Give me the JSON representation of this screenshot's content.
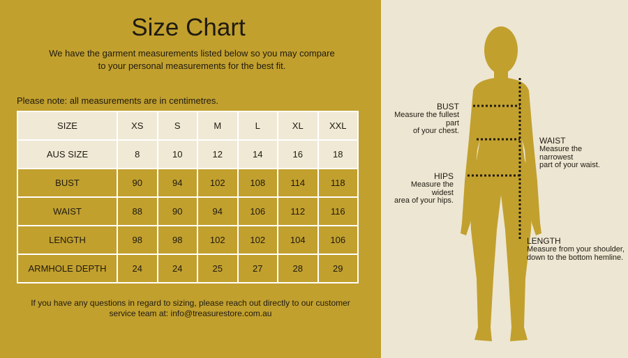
{
  "title": "Size Chart",
  "intro": [
    "We have the garment measurements listed below so you may compare",
    "to your personal measurements for the best fit."
  ],
  "note": "Please note: all measurements are in centimetres.",
  "table": {
    "rows": [
      [
        "SIZE",
        "XS",
        "S",
        "M",
        "L",
        "XL",
        "XXL"
      ],
      [
        "AUS SIZE",
        8,
        10,
        12,
        14,
        16,
        18
      ],
      [
        "BUST",
        90,
        94,
        102,
        108,
        114,
        118
      ],
      [
        "WAIST",
        88,
        90,
        94,
        106,
        112,
        116
      ],
      [
        "LENGTH",
        98,
        98,
        102,
        102,
        104,
        106
      ],
      [
        "ARMHOLE DEPTH",
        24,
        24,
        25,
        27,
        28,
        29
      ]
    ]
  },
  "footer": [
    "If you have any questions in regard to sizing, please reach out directly to our customer",
    "service team at: info@treasurestore.com.au"
  ],
  "figure": {
    "labels": [
      {
        "name": "BUST",
        "lines": [
          "Measure the fullest",
          "part",
          "of your chest."
        ]
      },
      {
        "name": "WAIST",
        "lines": [
          "Measure the",
          "narrowest",
          "part of your waist."
        ]
      },
      {
        "name": "HIPS",
        "lines": [
          "Measure the",
          "widest",
          "area of your hips."
        ]
      },
      {
        "name": "LENGTH",
        "lines": [
          "Measure from your shoulder,",
          "down to the bottom hemline."
        ]
      }
    ]
  }
}
